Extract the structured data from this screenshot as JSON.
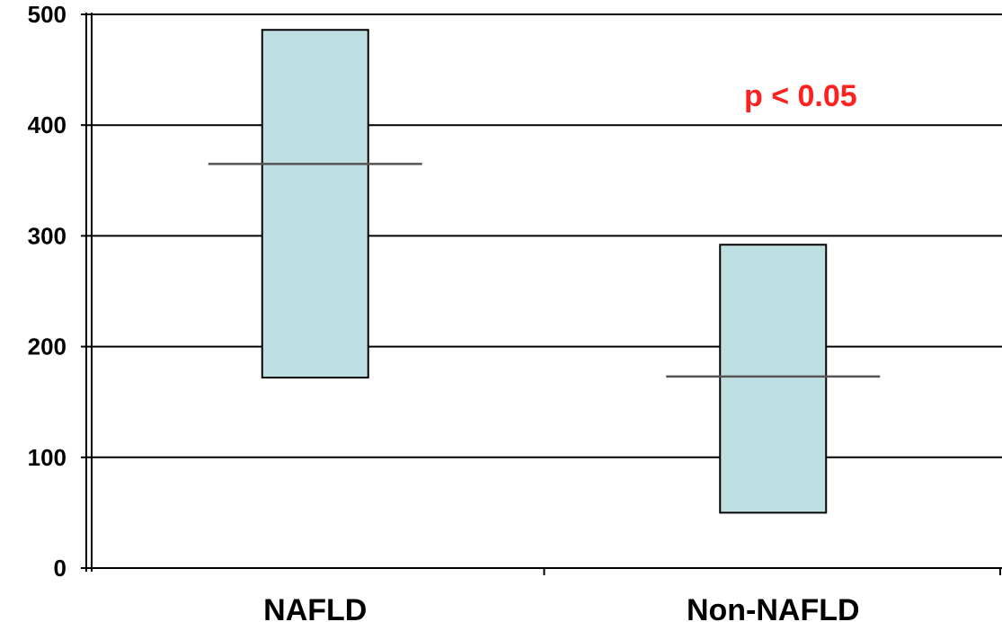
{
  "chart_data": {
    "type": "box",
    "categories": [
      "NAFLD",
      "Non-NAFLD"
    ],
    "boxes": [
      {
        "category": "NAFLD",
        "low": 172,
        "high": 486,
        "median": 365
      },
      {
        "category": "Non-NAFLD",
        "low": 50,
        "high": 292,
        "median": 173
      }
    ],
    "ylim": [
      0,
      500
    ],
    "yticks": [
      0,
      100,
      200,
      300,
      400,
      500
    ],
    "grid": true,
    "annotation": "p < 0.05",
    "colors": {
      "box_fill": "#bfe0e2",
      "annotation": "#ff2020",
      "line": "#000000",
      "median": "#555555"
    }
  }
}
